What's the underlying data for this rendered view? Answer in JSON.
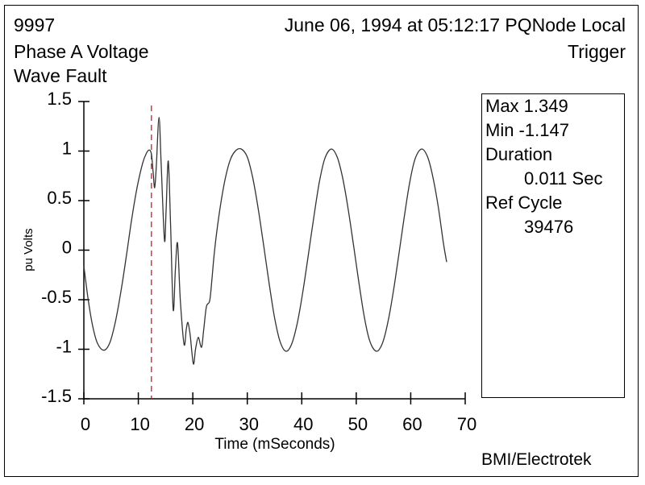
{
  "header": {
    "event_id": "9997",
    "title": "Phase A Voltage",
    "subtitle": "Wave Fault",
    "timestamp": "June 06, 1994 at 05:12:17 PQNode Local",
    "trigger": "Trigger"
  },
  "stats": {
    "max_label": "Max 1.349",
    "min_label": "Min  -1.147",
    "duration_label": "Duration",
    "duration_value": "0.011 Sec",
    "ref_cycle_label": "Ref Cycle",
    "ref_cycle_value": "39476"
  },
  "footer": {
    "brand": "BMI/Electrotek"
  },
  "colors": {
    "waveform": "#333333",
    "trigger_line": "#e0141e",
    "axis": "#000000"
  },
  "chart_data": {
    "type": "line",
    "title": "Phase A Voltage",
    "xlabel": "Time (mSeconds)",
    "ylabel": "pu Volts",
    "xlim": [
      0,
      70
    ],
    "ylim": [
      -1.5,
      1.5
    ],
    "x_ticks": [
      0,
      10,
      20,
      30,
      40,
      50,
      60,
      70
    ],
    "x_tick_labels": [
      "0",
      "10",
      "20",
      "30",
      "40",
      "50",
      "60",
      "70"
    ],
    "y_ticks": [
      1.5,
      1,
      0.5,
      0,
      -0.5,
      -1,
      -1.5
    ],
    "y_tick_labels": [
      "1.5",
      "1",
      "0.5",
      "0",
      "-0.5",
      "-1",
      "-1.5"
    ],
    "grid": false,
    "trigger_time": 12.4,
    "series": [
      {
        "name": "Phase A Voltage",
        "points": [
          [
            0,
            -0.16
          ],
          [
            0.8,
            -0.5
          ],
          [
            1.6,
            -0.76
          ],
          [
            2.5,
            -0.94
          ],
          [
            3.7,
            -1.01
          ],
          [
            4.8,
            -0.93
          ],
          [
            5.8,
            -0.72
          ],
          [
            6.8,
            -0.42
          ],
          [
            7.8,
            -0.06
          ],
          [
            8.8,
            0.32
          ],
          [
            9.8,
            0.64
          ],
          [
            10.8,
            0.88
          ],
          [
            11.5,
            0.98
          ],
          [
            12.0,
            1.01
          ],
          [
            12.4,
            0.97
          ],
          [
            12.7,
            0.8
          ],
          [
            13.0,
            0.63
          ],
          [
            13.3,
            0.85
          ],
          [
            13.8,
            1.34
          ],
          [
            14.2,
            0.85
          ],
          [
            14.8,
            0.1
          ],
          [
            15.1,
            0.4
          ],
          [
            15.5,
            0.9
          ],
          [
            15.9,
            0.3
          ],
          [
            16.4,
            -0.6
          ],
          [
            16.8,
            -0.2
          ],
          [
            17.2,
            0.07
          ],
          [
            17.7,
            -0.5
          ],
          [
            18.4,
            -0.95
          ],
          [
            18.8,
            -0.8
          ],
          [
            19.1,
            -0.73
          ],
          [
            19.5,
            -0.85
          ],
          [
            20.1,
            -1.147
          ],
          [
            20.5,
            -1.0
          ],
          [
            21.0,
            -0.88
          ],
          [
            21.6,
            -0.98
          ],
          [
            22.0,
            -0.8
          ],
          [
            22.5,
            -0.57
          ],
          [
            23.1,
            -0.51
          ],
          [
            23.5,
            -0.3
          ],
          [
            24.0,
            0.0
          ],
          [
            24.8,
            0.35
          ],
          [
            25.8,
            0.68
          ],
          [
            26.8,
            0.9
          ],
          [
            27.8,
            1.0
          ],
          [
            28.9,
            1.02
          ],
          [
            30.0,
            0.94
          ],
          [
            31.0,
            0.73
          ],
          [
            32.0,
            0.42
          ],
          [
            33.0,
            0.05
          ],
          [
            34.0,
            -0.33
          ],
          [
            35.0,
            -0.68
          ],
          [
            36.0,
            -0.92
          ],
          [
            37.1,
            -1.02
          ],
          [
            38.2,
            -0.94
          ],
          [
            39.2,
            -0.73
          ],
          [
            40.2,
            -0.42
          ],
          [
            41.2,
            -0.05
          ],
          [
            42.2,
            0.33
          ],
          [
            43.2,
            0.68
          ],
          [
            44.2,
            0.92
          ],
          [
            45.4,
            1.02
          ],
          [
            46.5,
            0.94
          ],
          [
            47.5,
            0.73
          ],
          [
            48.5,
            0.42
          ],
          [
            49.5,
            0.05
          ],
          [
            50.5,
            -0.33
          ],
          [
            51.5,
            -0.68
          ],
          [
            52.5,
            -0.92
          ],
          [
            53.7,
            -1.02
          ],
          [
            54.8,
            -0.94
          ],
          [
            55.8,
            -0.73
          ],
          [
            56.8,
            -0.42
          ],
          [
            57.8,
            -0.05
          ],
          [
            58.8,
            0.33
          ],
          [
            59.8,
            0.68
          ],
          [
            60.8,
            0.92
          ],
          [
            62.0,
            1.02
          ],
          [
            63.1,
            0.94
          ],
          [
            64.1,
            0.73
          ],
          [
            65.1,
            0.42
          ],
          [
            66.0,
            0.07
          ],
          [
            66.6,
            -0.12
          ]
        ]
      }
    ],
    "annotations": [
      {
        "type": "vertical-line",
        "x": 12.4,
        "style": "dashed",
        "meaning": "trigger"
      }
    ]
  }
}
